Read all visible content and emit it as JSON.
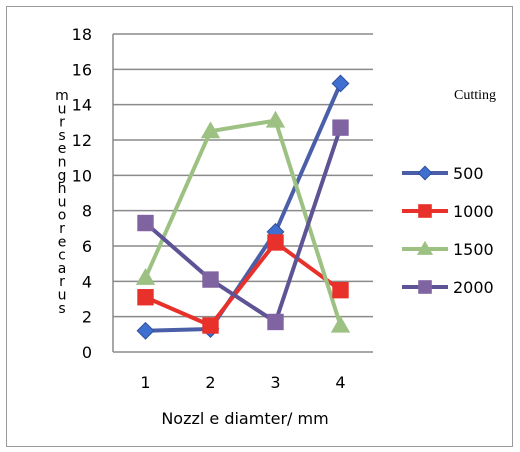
{
  "chart_data": {
    "type": "line",
    "title": "",
    "xlabel": "Nozzl e diamter/ mm",
    "ylabel": "m u r s e n g h u o r e c a r u s",
    "x": [
      "1",
      "2",
      "3",
      "4"
    ],
    "ylim": [
      0,
      18
    ],
    "yticks": [
      "0",
      "2",
      "4",
      "6",
      "8",
      "10",
      "12",
      "14",
      "16",
      "18"
    ],
    "grid": true,
    "legend_title": "Cutting",
    "legend_position": "right",
    "series": [
      {
        "name": "500",
        "values": [
          1.2,
          1.3,
          6.8,
          15.2
        ],
        "color": "#4A5FA8",
        "marker": "diamond-icon",
        "marker_color": "#3F6FD0"
      },
      {
        "name": "1000",
        "values": [
          3.1,
          1.5,
          6.2,
          3.5
        ],
        "color": "#E8312A",
        "marker": "square-icon",
        "marker_color": "#E8312A"
      },
      {
        "name": "1500",
        "values": [
          4.2,
          12.5,
          13.1,
          1.5
        ],
        "color": "#9DC183",
        "marker": "triangle-icon",
        "marker_color": "#9DC183"
      },
      {
        "name": "2000",
        "values": [
          7.3,
          4.1,
          1.7,
          12.7
        ],
        "color": "#5E5394",
        "marker": "square-icon",
        "marker_color": "#8064A2"
      }
    ]
  }
}
